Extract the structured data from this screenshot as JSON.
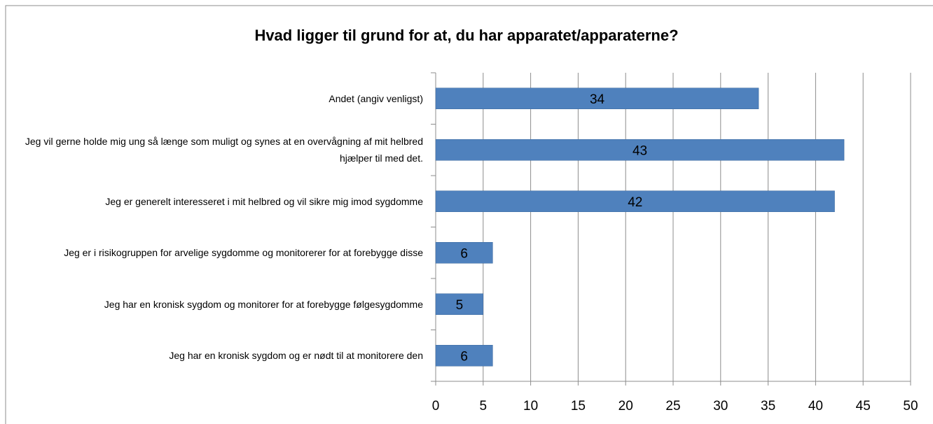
{
  "chart_data": {
    "type": "bar",
    "orientation": "horizontal",
    "title": "Hvad ligger til grund for at, du har apparatet/apparaterne?",
    "categories": [
      "Andet (angiv venligst)",
      "Jeg vil gerne holde mig ung så længe som muligt og synes at en overvågning af mit helbred hjælper til med det.",
      "Jeg er generelt interesseret i mit helbred og vil sikre mig imod sygdomme",
      "Jeg er i risikogruppen for arvelige sygdomme og monitorerer for at forebygge disse",
      "Jeg har en kronisk sygdom og monitorer for at forebygge følgesygdomme",
      "Jeg har en kronisk sygdom og er nødt til at monitorere den"
    ],
    "values": [
      34,
      43,
      42,
      6,
      5,
      6
    ],
    "color": "#4f81bd",
    "xlim": [
      0,
      50
    ],
    "xticks": [
      0,
      5,
      10,
      15,
      20,
      25,
      30,
      35,
      40,
      45,
      50
    ],
    "grid": true
  }
}
